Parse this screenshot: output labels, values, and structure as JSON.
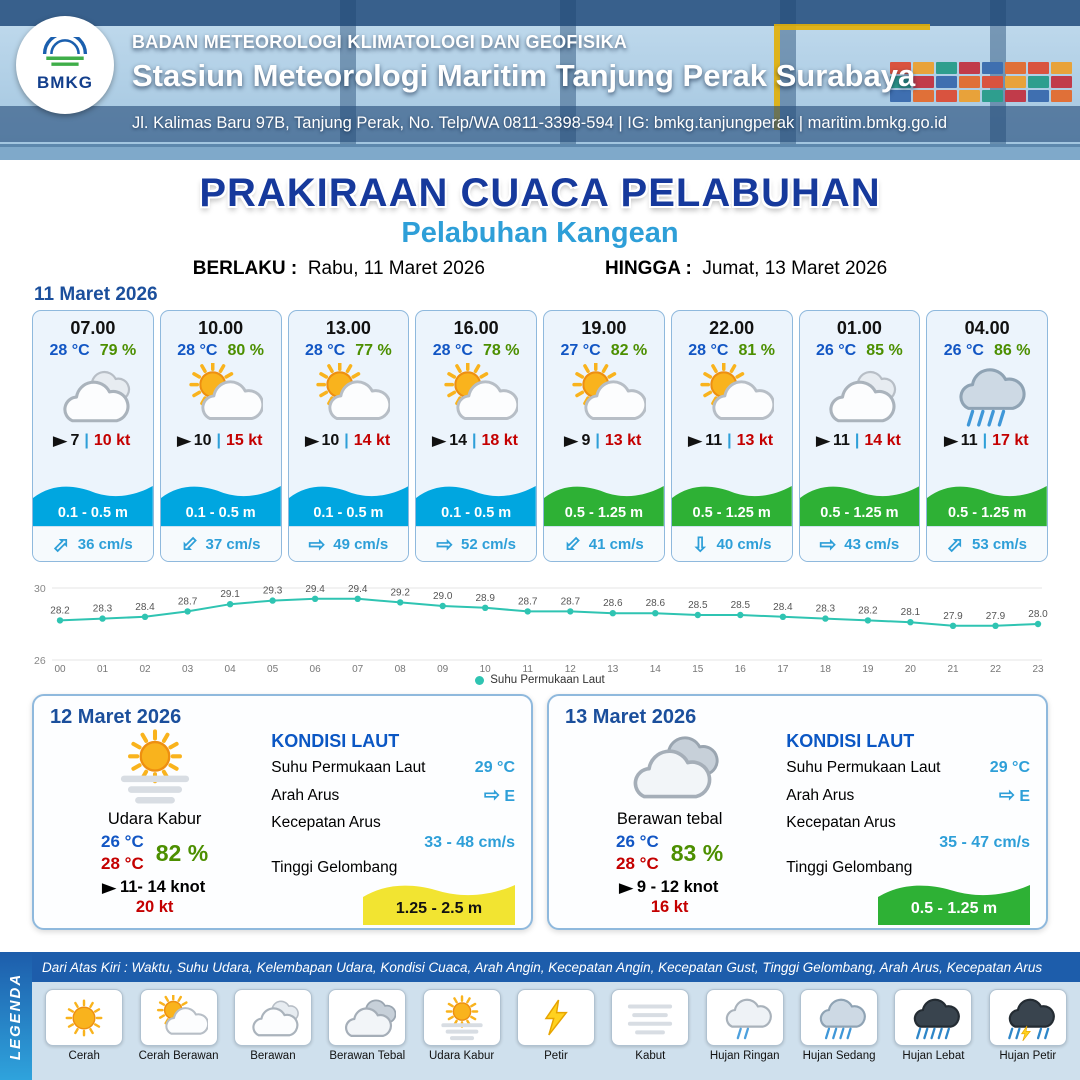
{
  "header": {
    "logo_text": "BMKG",
    "org": "BADAN METEOROLOGI KLIMATOLOGI DAN GEOFISIKA",
    "station": "Stasiun Meteorologi Maritim Tanjung Perak Surabaya",
    "address": "Jl. Kalimas Baru 97B, Tanjung Perak, No. Telp/WA 0811-3398-594 | IG: bmkg.tanjungperak | maritim.bmkg.go.id"
  },
  "title": {
    "main": "PRAKIRAAN CUACA PELABUHAN",
    "port": "Pelabuhan Kangean",
    "berlaku_label": "BERLAKU :",
    "berlaku": "Rabu, 11 Maret 2026",
    "hingga_label": "HINGGA :",
    "hingga": "Jumat, 13 Maret 2026"
  },
  "hourly_date": "11 Maret 2026",
  "hourly": [
    {
      "time": "07.00",
      "temp": "28 °C",
      "rh": "79 %",
      "icon": "berawan",
      "wind": "7",
      "gust": "10 kt",
      "wave": "0.1 - 0.5 m",
      "wave_color": "#00a6e0",
      "current": "36 cm/s",
      "current_dir": "ne"
    },
    {
      "time": "10.00",
      "temp": "28 °C",
      "rh": "80 %",
      "icon": "cerah_berawan",
      "wind": "10",
      "gust": "15 kt",
      "wave": "0.1 - 0.5 m",
      "wave_color": "#00a6e0",
      "current": "37 cm/s",
      "current_dir": "sw"
    },
    {
      "time": "13.00",
      "temp": "28 °C",
      "rh": "77 %",
      "icon": "cerah_berawan",
      "wind": "10",
      "gust": "14 kt",
      "wave": "0.1 - 0.5 m",
      "wave_color": "#00a6e0",
      "current": "49 cm/s",
      "current_dir": "e"
    },
    {
      "time": "16.00",
      "temp": "28 °C",
      "rh": "78 %",
      "icon": "cerah_berawan",
      "wind": "14",
      "gust": "18 kt",
      "wave": "0.1 - 0.5 m",
      "wave_color": "#00a6e0",
      "current": "52 cm/s",
      "current_dir": "e"
    },
    {
      "time": "19.00",
      "temp": "27 °C",
      "rh": "82 %",
      "icon": "cerah_berawan",
      "wind": "9",
      "gust": "13 kt",
      "wave": "0.5 - 1.25 m",
      "wave_color": "#2eb135",
      "current": "41 cm/s",
      "current_dir": "sw"
    },
    {
      "time": "22.00",
      "temp": "28 °C",
      "rh": "81 %",
      "icon": "cerah_berawan",
      "wind": "11",
      "gust": "13 kt",
      "wave": "0.5 - 1.25 m",
      "wave_color": "#2eb135",
      "current": "40 cm/s",
      "current_dir": "s"
    },
    {
      "time": "01.00",
      "temp": "26 °C",
      "rh": "85 %",
      "icon": "berawan",
      "wind": "11",
      "gust": "14 kt",
      "wave": "0.5 - 1.25 m",
      "wave_color": "#2eb135",
      "current": "43 cm/s",
      "current_dir": "e"
    },
    {
      "time": "04.00",
      "temp": "26 °C",
      "rh": "86 %",
      "icon": "hujan_sedang",
      "wind": "11",
      "gust": "17 kt",
      "wave": "0.5 - 1.25 m",
      "wave_color": "#2eb135",
      "current": "53 cm/s",
      "current_dir": "ne"
    }
  ],
  "chart_data": {
    "type": "line",
    "legend": "Suhu Permukaan Laut",
    "x_labels": [
      "00",
      "01",
      "02",
      "03",
      "04",
      "05",
      "06",
      "07",
      "08",
      "09",
      "10",
      "11",
      "12",
      "13",
      "14",
      "15",
      "16",
      "17",
      "18",
      "19",
      "20",
      "21",
      "22",
      "23"
    ],
    "series": [
      {
        "name": "Suhu Permukaan Laut",
        "values": [
          28.2,
          28.3,
          28.4,
          28.7,
          29.1,
          29.3,
          29.4,
          29.4,
          29.2,
          29.0,
          28.9,
          28.7,
          28.7,
          28.6,
          28.6,
          28.5,
          28.5,
          28.4,
          28.3,
          28.2,
          28.1,
          27.9,
          27.9,
          28.0
        ]
      }
    ],
    "ylim": [
      26,
      30
    ],
    "y_tick_labels": [
      "30",
      "26"
    ],
    "line_color": "#2fc4b2",
    "grid": true,
    "legend_position": "bottom"
  },
  "days": [
    {
      "date": "12 Maret 2026",
      "icon": "udara_kabur",
      "cond": "Udara Kabur",
      "temp_min": "26 °C",
      "rh": "82 %",
      "temp_max": "28 °C",
      "wind": "11- 14 knot",
      "gust": "20 kt",
      "sea": {
        "title": "KONDISI LAUT",
        "sst_label": "Suhu Permukaan Laut",
        "sst": "29 °C",
        "dir_label": "Arah Arus",
        "dir": "E",
        "dir_rot": 0,
        "cur_label": "Kecepatan Arus",
        "cur": "33 - 48 cm/s",
        "wave_label": "Tinggi Gelombang",
        "wave": "1.25 - 2.5 m",
        "wave_color": "#f2e431",
        "wave_text": "#111111"
      }
    },
    {
      "date": "13 Maret 2026",
      "icon": "berawan_tebal",
      "cond": "Berawan tebal",
      "temp_min": "26 °C",
      "rh": "83 %",
      "temp_max": "28 °C",
      "wind": "9  - 12 knot",
      "gust": "16 kt",
      "sea": {
        "title": "KONDISI LAUT",
        "sst_label": "Suhu Permukaan Laut",
        "sst": "29 °C",
        "dir_label": "Arah Arus",
        "dir": "E",
        "dir_rot": 0,
        "cur_label": "Kecepatan Arus",
        "cur": "35 - 47 cm/s",
        "wave_label": "Tinggi Gelombang",
        "wave": "0.5 - 1.25 m",
        "wave_color": "#2eb135",
        "wave_text": "#ffffff"
      }
    }
  ],
  "legend_bar": "Dari Atas Kiri : Waktu, Suhu Udara, Kelembapan Udara, Kondisi Cuaca, Arah Angin, Kecepatan Angin, Kecepatan Gust, Tinggi Gelombang, Arah Arus, Kecepatan Arus",
  "legend_title": "LEGENDA",
  "legend_items": [
    {
      "label": "Cerah",
      "icon": "cerah"
    },
    {
      "label": "Cerah Berawan",
      "icon": "cerah_berawan"
    },
    {
      "label": "Berawan",
      "icon": "berawan"
    },
    {
      "label": "Berawan Tebal",
      "icon": "berawan_tebal"
    },
    {
      "label": "Udara Kabur",
      "icon": "udara_kabur"
    },
    {
      "label": "Petir",
      "icon": "petir"
    },
    {
      "label": "Kabut",
      "icon": "kabut"
    },
    {
      "label": "Hujan Ringan",
      "icon": "hujan_ringan"
    },
    {
      "label": "Hujan Sedang",
      "icon": "hujan_sedang"
    },
    {
      "label": "Hujan Lebat",
      "icon": "hujan_lebat"
    },
    {
      "label": "Hujan Petir",
      "icon": "hujan_petir"
    }
  ]
}
